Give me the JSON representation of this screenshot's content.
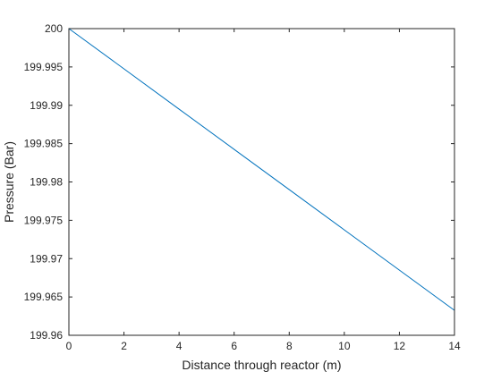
{
  "chart_data": {
    "type": "line",
    "title": "",
    "xlabel": "Distance through reactor (m)",
    "ylabel": "Pressure (Bar)",
    "xlim": [
      0,
      14
    ],
    "ylim": [
      199.96,
      200
    ],
    "xticks": [
      0,
      2,
      4,
      6,
      8,
      10,
      12,
      14
    ],
    "xtick_labels": [
      "0",
      "2",
      "4",
      "6",
      "8",
      "10",
      "12",
      "14"
    ],
    "yticks": [
      199.96,
      199.965,
      199.97,
      199.975,
      199.98,
      199.985,
      199.99,
      199.995,
      200
    ],
    "ytick_labels": [
      "199.96",
      "199.965",
      "199.97",
      "199.975",
      "199.98",
      "199.985",
      "199.99",
      "199.995",
      "200"
    ],
    "grid": false,
    "legend": "none",
    "series": [
      {
        "color": "#0072BD",
        "x": [
          0,
          2,
          4,
          6,
          8,
          10,
          12,
          14
        ],
        "y": [
          200,
          199.99475,
          199.9895,
          199.98425,
          199.979,
          199.97375,
          199.9685,
          199.96325
        ]
      }
    ]
  }
}
